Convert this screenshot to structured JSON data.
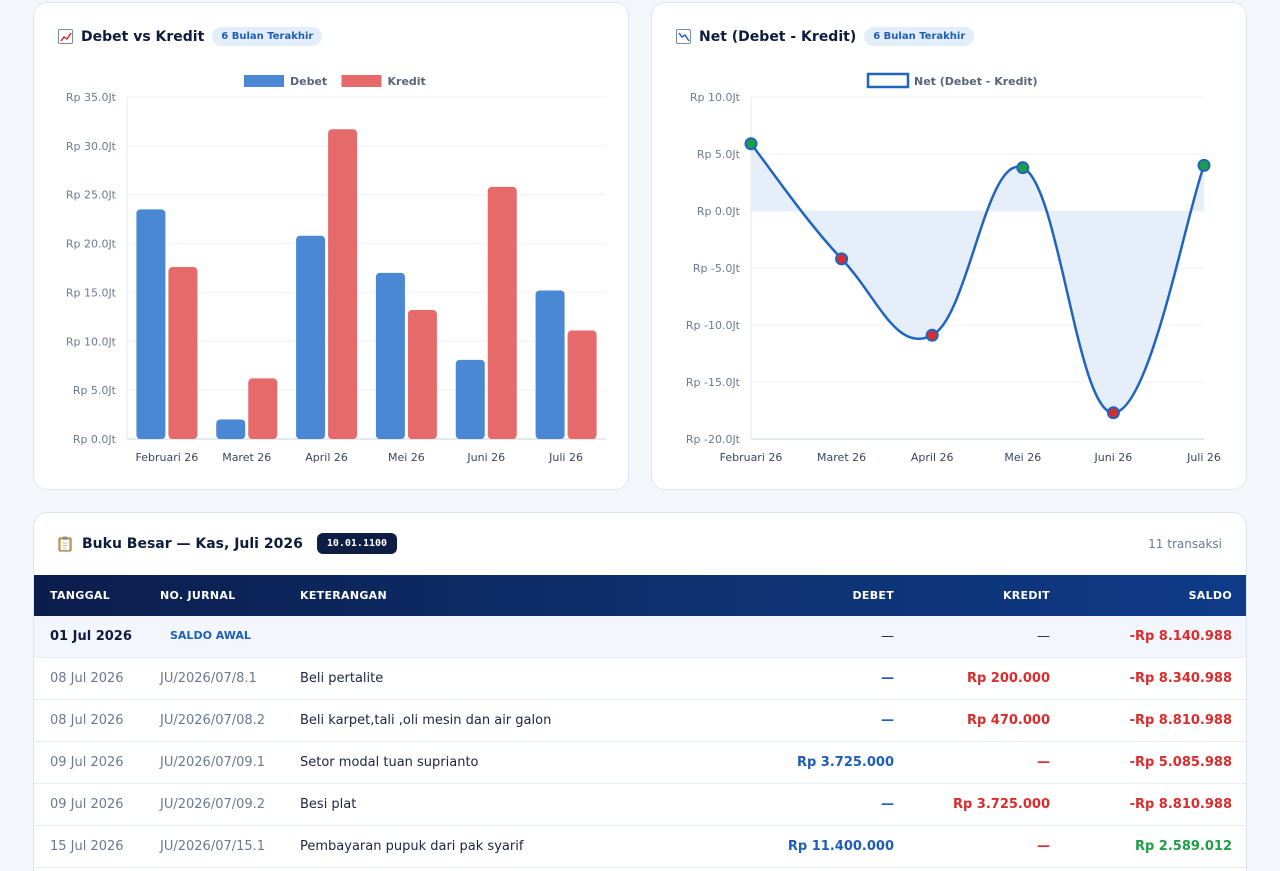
{
  "bar_card": {
    "title": "Debet vs Kredit",
    "badge": "6 Bulan Terakhir"
  },
  "line_card": {
    "title": "Net (Debet - Kredit)",
    "badge": "6 Bulan Terakhir"
  },
  "chart_data": [
    {
      "type": "bar",
      "title": "Debet vs Kredit",
      "categories": [
        "Februari 26",
        "Maret 26",
        "April 26",
        "Mei 26",
        "Juni 26",
        "Juli 26"
      ],
      "series": [
        {
          "name": "Debet",
          "values": [
            23.5,
            2.0,
            20.8,
            17.0,
            8.1,
            15.2
          ],
          "color": "#4a88d4"
        },
        {
          "name": "Kredit",
          "values": [
            17.6,
            6.2,
            31.7,
            13.2,
            25.8,
            11.1
          ],
          "color": "#e76a6b"
        }
      ],
      "yticks": [
        "Rp 0.0Jt",
        "Rp 5.0Jt",
        "Rp 10.0Jt",
        "Rp 15.0Jt",
        "Rp 20.0Jt",
        "Rp 25.0Jt",
        "Rp 30.0Jt",
        "Rp 35.0Jt"
      ],
      "ylim": [
        0,
        35
      ],
      "grid": true,
      "legend": "top-center"
    },
    {
      "type": "line",
      "title": "Net (Debet - Kredit)",
      "categories": [
        "Februari 26",
        "Maret 26",
        "April 26",
        "Mei 26",
        "Juni 26",
        "Juli 26"
      ],
      "series": [
        {
          "name": "Net (Debet - Kredit)",
          "values": [
            5.9,
            -4.2,
            -10.9,
            3.8,
            -17.7,
            4.0
          ],
          "color": "#1f64c0"
        }
      ],
      "yticks": [
        "Rp -20.0Jt",
        "Rp -15.0Jt",
        "Rp -10.0Jt",
        "Rp -5.0Jt",
        "Rp 0.0Jt",
        "Rp 5.0Jt",
        "Rp 10.0Jt"
      ],
      "ylim": [
        -20,
        10
      ],
      "positive_color": "#1e9e46",
      "negative_color": "#d92d2d",
      "fill": "#e6eef9",
      "grid": true,
      "legend": "top-center"
    }
  ],
  "ledger": {
    "title": "Buku Besar — Kas, Juli 2026",
    "account_code": "10.01.1100",
    "tx_count": "11 transaksi",
    "columns": {
      "date": "TANGGAL",
      "ref": "NO. JURNAL",
      "desc": "KETERANGAN",
      "debit": "DEBET",
      "credit": "KREDIT",
      "balance": "SALDO"
    },
    "opening": {
      "date": "01 Jul 2026",
      "tag": "SALDO AWAL",
      "debit": "—",
      "credit": "—",
      "balance": "-Rp 8.140.988"
    },
    "rows": [
      {
        "date": "08 Jul 2026",
        "ref": "JU/2026/07/8.1",
        "desc": "Beli pertalite",
        "debit": "—",
        "credit": "Rp 200.000",
        "balance": "-Rp 8.340.988"
      },
      {
        "date": "08 Jul 2026",
        "ref": "JU/2026/07/08.2",
        "desc": "Beli karpet,tali ,oli mesin dan air galon",
        "debit": "—",
        "credit": "Rp 470.000",
        "balance": "-Rp 8.810.988"
      },
      {
        "date": "09 Jul 2026",
        "ref": "JU/2026/07/09.1",
        "desc": "Setor modal tuan suprianto",
        "debit": "Rp 3.725.000",
        "credit": "—",
        "balance": "-Rp 5.085.988"
      },
      {
        "date": "09 Jul 2026",
        "ref": "JU/2026/07/09.2",
        "desc": "Besi plat",
        "debit": "—",
        "credit": "Rp 3.725.000",
        "balance": "-Rp 8.810.988"
      },
      {
        "date": "15 Jul 2026",
        "ref": "JU/2026/07/15.1",
        "desc": "Pembayaran pupuk dari pak syarif",
        "debit": "Rp 11.400.000",
        "credit": "—",
        "balance": "Rp 2.589.012"
      }
    ]
  }
}
